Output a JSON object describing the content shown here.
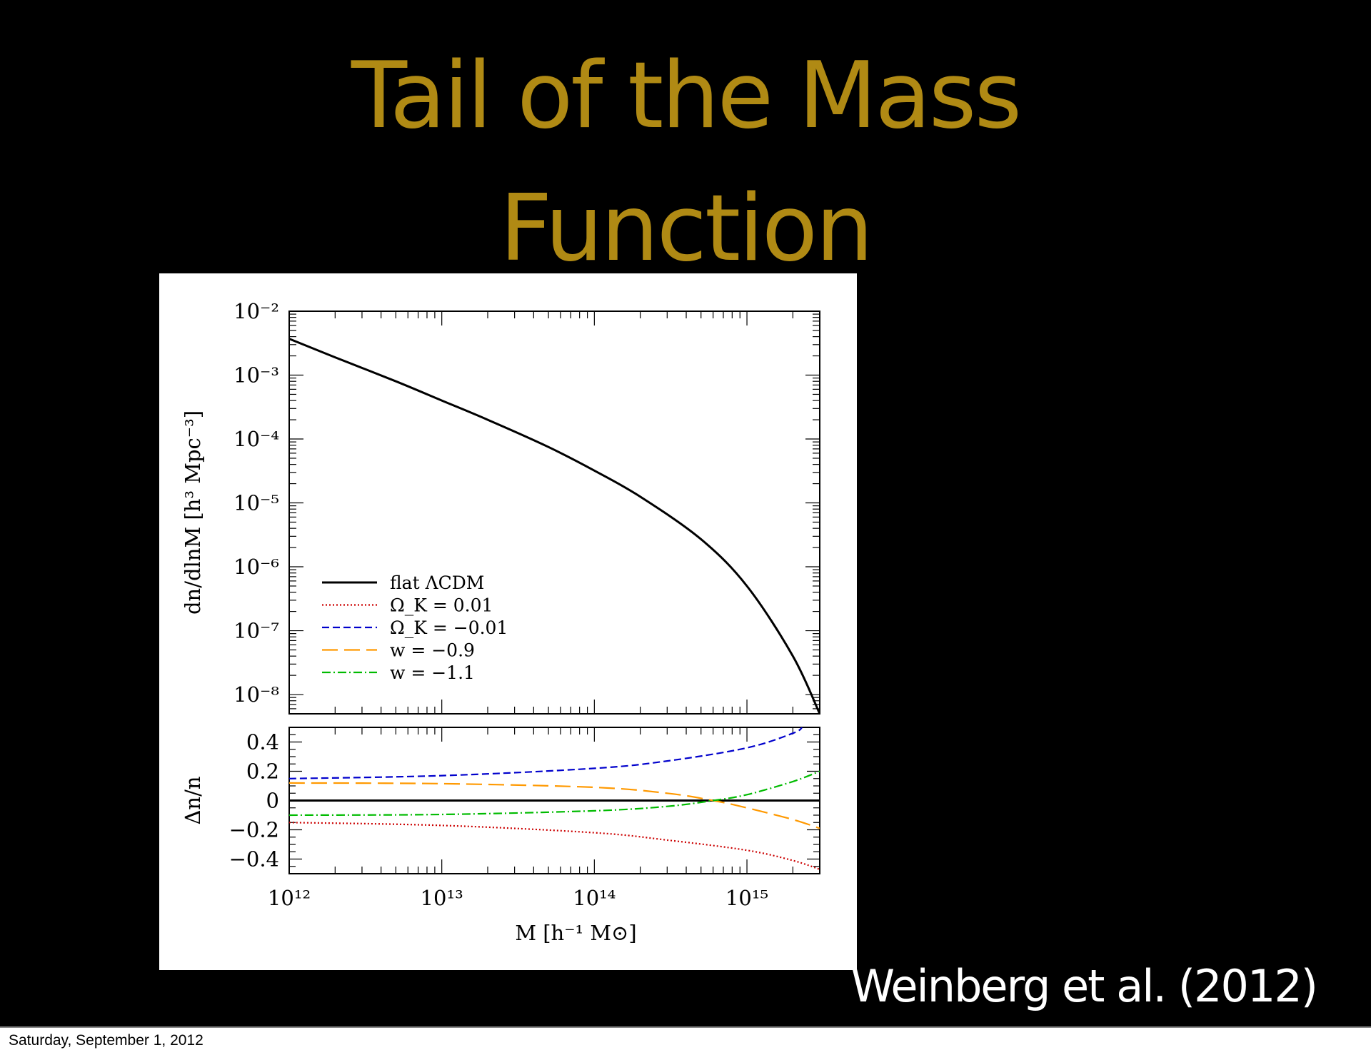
{
  "slide": {
    "title_line1": "Tail of the Mass",
    "title_line2": "Function",
    "title_color": "#b08a14",
    "background": "#000000",
    "citation": "Weinberg et al. (2012)",
    "footer_date": "Saturday, September 1, 2012"
  },
  "chart_data": [
    {
      "type": "line",
      "panel": "top",
      "ylabel": "dn/dlnM [h³ Mpc⁻³]",
      "xscale": "log",
      "yscale": "log",
      "xlim": [
        1000000000000.0,
        3000000000000000.0
      ],
      "ylim": [
        5e-09,
        0.01
      ],
      "yticks": [
        {
          "value": 0.01,
          "label": "10⁻²"
        },
        {
          "value": 0.001,
          "label": "10⁻³"
        },
        {
          "value": 0.0001,
          "label": "10⁻⁴"
        },
        {
          "value": 1e-05,
          "label": "10⁻⁵"
        },
        {
          "value": 1e-06,
          "label": "10⁻⁶"
        },
        {
          "value": 1e-07,
          "label": "10⁻⁷"
        },
        {
          "value": 1e-08,
          "label": "10⁻⁸"
        }
      ],
      "legend_position": "bottom-left",
      "legend": [
        {
          "label": "flat ΛCDM",
          "color": "#000000",
          "dash": "solid"
        },
        {
          "label": "Ω_K = 0.01",
          "color": "#cc0000",
          "dash": "dotted"
        },
        {
          "label": "Ω_K = −0.01",
          "color": "#0000cc",
          "dash": "dashed"
        },
        {
          "label": "w = −0.9",
          "color": "#ff9900",
          "dash": "longdash"
        },
        {
          "label": "w = −1.1",
          "color": "#00bb00",
          "dash": "dashdot"
        }
      ],
      "series": [
        {
          "name": "flat ΛCDM",
          "color": "#000000",
          "points": [
            [
              1000000000000.0,
              0.0037
            ],
            [
              2000000000000.0,
              0.0019
            ],
            [
              5000000000000.0,
              0.0008
            ],
            [
              10000000000000.0,
              0.0004
            ],
            [
              20000000000000.0,
              0.0002
            ],
            [
              50000000000000.0,
              7.5e-05
            ],
            [
              100000000000000.0,
              3.2e-05
            ],
            [
              200000000000000.0,
              1.25e-05
            ],
            [
              500000000000000.0,
              2.7e-06
            ],
            [
              1000000000000000.0,
              5e-07
            ],
            [
              2000000000000000.0,
              4e-08
            ],
            [
              3000000000000000.0,
              5e-09
            ]
          ]
        }
      ]
    },
    {
      "type": "line",
      "panel": "bottom",
      "xlabel": "M [h⁻¹ M⊙]",
      "ylabel": "Δn/n",
      "xscale": "log",
      "xlim": [
        1000000000000.0,
        3000000000000000.0
      ],
      "ylim": [
        -0.5,
        0.5
      ],
      "xticks": [
        {
          "value": 1000000000000.0,
          "label": "10¹²"
        },
        {
          "value": 10000000000000.0,
          "label": "10¹³"
        },
        {
          "value": 100000000000000.0,
          "label": "10¹⁴"
        },
        {
          "value": 1000000000000000.0,
          "label": "10¹⁵"
        }
      ],
      "yticks": [
        {
          "value": 0.4,
          "label": "0.4"
        },
        {
          "value": 0.2,
          "label": "0.2"
        },
        {
          "value": 0,
          "label": "0"
        },
        {
          "value": -0.2,
          "label": "−0.2"
        },
        {
          "value": -0.4,
          "label": "−0.4"
        }
      ],
      "series": [
        {
          "name": "flat ΛCDM",
          "color": "#000000",
          "dash": "solid",
          "points": [
            [
              1000000000000.0,
              0
            ],
            [
              3000000000000000.0,
              0
            ]
          ]
        },
        {
          "name": "Ω_K = 0.01",
          "color": "#cc0000",
          "dash": "dotted",
          "points": [
            [
              1000000000000.0,
              -0.15
            ],
            [
              10000000000000.0,
              -0.17
            ],
            [
              100000000000000.0,
              -0.22
            ],
            [
              300000000000000.0,
              -0.27
            ],
            [
              1000000000000000.0,
              -0.34
            ],
            [
              2000000000000000.0,
              -0.41
            ],
            [
              3000000000000000.0,
              -0.47
            ]
          ]
        },
        {
          "name": "Ω_K = −0.01",
          "color": "#0000cc",
          "dash": "dashed",
          "points": [
            [
              1000000000000.0,
              0.15
            ],
            [
              10000000000000.0,
              0.17
            ],
            [
              100000000000000.0,
              0.22
            ],
            [
              300000000000000.0,
              0.27
            ],
            [
              1000000000000000.0,
              0.36
            ],
            [
              2000000000000000.0,
              0.46
            ],
            [
              2300000000000000.0,
              0.5
            ]
          ]
        },
        {
          "name": "w = −0.9",
          "color": "#ff9900",
          "dash": "longdash",
          "points": [
            [
              1000000000000.0,
              0.12
            ],
            [
              10000000000000.0,
              0.115
            ],
            [
              100000000000000.0,
              0.09
            ],
            [
              300000000000000.0,
              0.05
            ],
            [
              600000000000000.0,
              0.0
            ],
            [
              1000000000000000.0,
              -0.05
            ],
            [
              2000000000000000.0,
              -0.13
            ],
            [
              3000000000000000.0,
              -0.19
            ]
          ]
        },
        {
          "name": "w = −1.1",
          "color": "#00bb00",
          "dash": "dashdot",
          "points": [
            [
              1000000000000.0,
              -0.1
            ],
            [
              10000000000000.0,
              -0.095
            ],
            [
              100000000000000.0,
              -0.07
            ],
            [
              300000000000000.0,
              -0.04
            ],
            [
              600000000000000.0,
              0.0
            ],
            [
              1000000000000000.0,
              0.04
            ],
            [
              2000000000000000.0,
              0.13
            ],
            [
              3000000000000000.0,
              0.2
            ]
          ]
        }
      ]
    }
  ]
}
